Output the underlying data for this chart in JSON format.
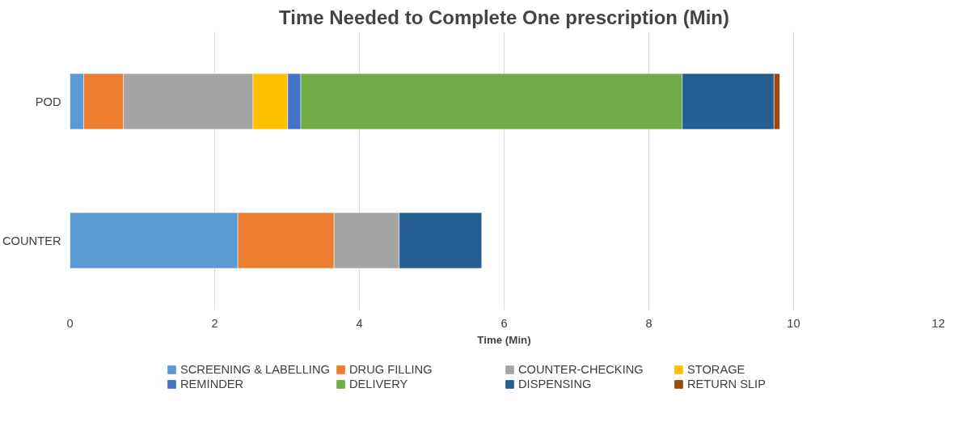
{
  "chart_data": {
    "type": "bar",
    "orientation": "horizontal",
    "stacked": true,
    "title": "Time Needed to Complete One prescription (Min)",
    "xlabel": "Time (Min)",
    "categories": [
      "POD",
      "COUNTER"
    ],
    "series": [
      {
        "name": "SCREENING & LABELLING",
        "color": "#5b9bd5",
        "values": [
          0.19,
          2.32
        ]
      },
      {
        "name": "DRUG FILLING",
        "color": "#ed7d31",
        "values": [
          0.55,
          1.33
        ]
      },
      {
        "name": "COUNTER-CHECKING",
        "color": "#a5a5a5",
        "values": [
          1.79,
          0.9
        ]
      },
      {
        "name": "STORAGE",
        "color": "#ffc000",
        "values": [
          0.48,
          null
        ]
      },
      {
        "name": "REMINDER",
        "color": "#4472c4",
        "values": [
          0.18,
          null
        ]
      },
      {
        "name": "DELIVERY",
        "color": "#70ad47",
        "values": [
          5.27,
          null
        ]
      },
      {
        "name": "DISPENSING",
        "color": "#255e91",
        "values": [
          1.27,
          1.14
        ]
      },
      {
        "name": "RETURN SLIP",
        "color": "#9e480e",
        "values": [
          0.08,
          null
        ]
      }
    ],
    "xlim": [
      0,
      12
    ],
    "xticks": [
      0,
      2,
      4,
      6,
      8,
      10,
      12
    ],
    "grid": "x",
    "legend": "bottom"
  }
}
